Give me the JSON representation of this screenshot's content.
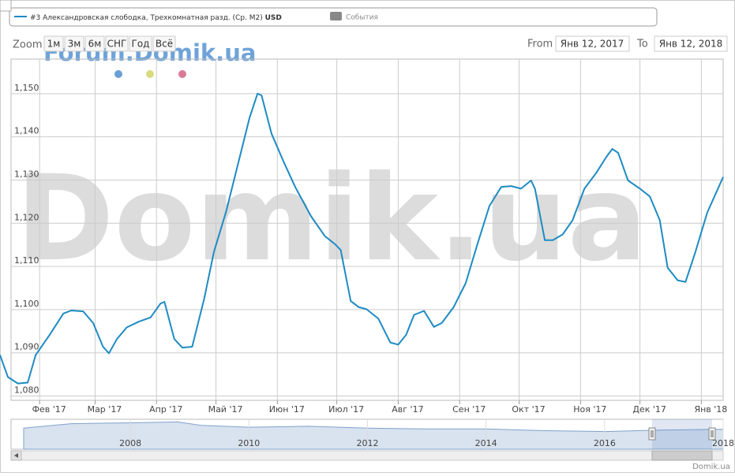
{
  "legend": {
    "events": "События"
  },
  "range_selector": {
    "label": "Zoom",
    "buttons": [
      "1м",
      "3м",
      "6м",
      "СНГ",
      "Год",
      "Всё"
    ],
    "from_label": "From",
    "from": "Янв 12, 2017",
    "to_label": "To",
    "to": "Янв 12, 2018"
  },
  "watermarks": [
    "Forum.Domik.ua",
    "Domik.ua"
  ],
  "credit": "Domik.ua",
  "chart_data": [
    {
      "type": "line",
      "unit": "USD",
      "x": [
        "2017-01-12",
        "2017-01-16",
        "2017-01-21",
        "2017-01-26",
        "2017-01-30",
        "2017-02-06",
        "2017-02-13",
        "2017-02-17",
        "2017-02-23",
        "2017-02-28",
        "2017-03-05",
        "2017-03-08",
        "2017-03-12",
        "2017-03-17",
        "2017-03-23",
        "2017-03-29",
        "2017-04-03",
        "2017-04-05",
        "2017-04-10",
        "2017-04-14",
        "2017-04-19",
        "2017-04-25",
        "2017-04-30",
        "2017-05-06",
        "2017-05-12",
        "2017-05-18",
        "2017-05-22",
        "2017-05-24",
        "2017-05-29",
        "2017-06-04",
        "2017-06-10",
        "2017-06-18",
        "2017-06-25",
        "2017-06-30",
        "2017-07-03",
        "2017-07-08",
        "2017-07-12",
        "2017-07-16",
        "2017-07-22",
        "2017-07-28",
        "2017-08-01",
        "2017-08-05",
        "2017-08-09",
        "2017-08-14",
        "2017-08-19",
        "2017-08-23",
        "2017-08-29",
        "2017-09-04",
        "2017-09-10",
        "2017-09-16",
        "2017-09-22",
        "2017-09-27",
        "2017-10-02",
        "2017-10-07",
        "2017-10-09",
        "2017-10-14",
        "2017-10-18",
        "2017-10-23",
        "2017-10-28",
        "2017-11-03",
        "2017-11-09",
        "2017-11-14",
        "2017-11-17",
        "2017-11-20",
        "2017-11-25",
        "2017-12-01",
        "2017-12-06",
        "2017-12-11",
        "2017-12-15",
        "2017-12-20",
        "2017-12-24",
        "2017-12-29",
        "2018-01-04",
        "2018-01-12"
      ],
      "series": [
        {
          "name": "#3 Александровская слободка, Трехкомнатная разд. (Ср. M2)",
          "color": "#1e8bc3",
          "values": [
            1089.5,
            1084.4,
            1082.9,
            1083.1,
            1089.5,
            1094.1,
            1099.1,
            1099.8,
            1099.6,
            1096.9,
            1091.4,
            1089.9,
            1093.2,
            1095.9,
            1097.2,
            1098.2,
            1101.4,
            1101.8,
            1093.2,
            1091.2,
            1091.4,
            1102.4,
            1113.4,
            1122.5,
            1133.5,
            1144.5,
            1150.0,
            1149.6,
            1140.8,
            1134.4,
            1128.4,
            1121.6,
            1117.0,
            1115.2,
            1113.8,
            1102.0,
            1100.6,
            1100.1,
            1097.9,
            1092.4,
            1091.9,
            1094.2,
            1098.8,
            1099.7,
            1096.0,
            1096.9,
            1100.6,
            1106.1,
            1115.2,
            1124.0,
            1128.4,
            1128.6,
            1128.0,
            1129.9,
            1128.0,
            1116.1,
            1116.1,
            1117.4,
            1120.7,
            1128.0,
            1131.7,
            1135.3,
            1137.2,
            1136.3,
            1129.9,
            1128.0,
            1126.2,
            1120.7,
            1109.7,
            1106.8,
            1106.4,
            1113.4,
            1122.5,
            1130.7
          ]
        }
      ],
      "xlim": [
        "2017-01-12",
        "2018-01-12"
      ],
      "xticks": [
        {
          "value": "2017-02-01",
          "label": "Фев '17"
        },
        {
          "value": "2017-03-01",
          "label": "Мар '17"
        },
        {
          "value": "2017-04-01",
          "label": "Апр '17"
        },
        {
          "value": "2017-05-01",
          "label": "Май '17"
        },
        {
          "value": "2017-06-01",
          "label": "Июн '17"
        },
        {
          "value": "2017-07-01",
          "label": "Июл '17"
        },
        {
          "value": "2017-08-01",
          "label": "Авг '17"
        },
        {
          "value": "2017-09-01",
          "label": "Сен '17"
        },
        {
          "value": "2017-10-01",
          "label": "Окт '17"
        },
        {
          "value": "2017-11-01",
          "label": "Ноя '17"
        },
        {
          "value": "2017-12-01",
          "label": "Дек '17"
        },
        {
          "value": "2018-01-01",
          "label": "Янв '18"
        }
      ],
      "ylim": [
        1079,
        1158
      ],
      "yticks": [
        {
          "value": 1080,
          "label": "1,080"
        },
        {
          "value": 1090,
          "label": "1,090"
        },
        {
          "value": 1100,
          "label": "1,100"
        },
        {
          "value": 1110,
          "label": "1,110"
        },
        {
          "value": 1120,
          "label": "1,120"
        },
        {
          "value": 1130,
          "label": "1,130"
        },
        {
          "value": 1140,
          "label": "1,140"
        },
        {
          "value": 1150,
          "label": "1,150"
        }
      ],
      "grid": true
    },
    {
      "type": "area",
      "x": [
        2006.2,
        2007,
        2008,
        2008.8,
        2009.2,
        2010,
        2011,
        2012,
        2013,
        2014,
        2015,
        2016,
        2017,
        2018
      ],
      "values": [
        1200,
        1450,
        1500,
        1550,
        1350,
        1250,
        1300,
        1200,
        1150,
        1150,
        1050,
        1000,
        1090,
        1130
      ],
      "color": "#a9c0dc",
      "xlim": [
        2006.2,
        2018
      ],
      "xticks": [
        2008,
        2010,
        2012,
        2014,
        2016,
        2018
      ],
      "ylim": [
        0,
        1700
      ]
    }
  ]
}
